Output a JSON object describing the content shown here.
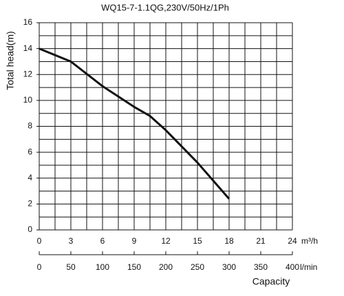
{
  "chart_data": {
    "type": "line",
    "title": "WQ15-7-1.1QG,230V/50Hz/1Ph",
    "y_label": "Total head(m)",
    "x_label": "Capacity",
    "x_unit": "m³/h",
    "x2_unit": "l/min",
    "x": [
      0,
      3,
      6,
      9,
      10.5,
      12,
      15,
      18
    ],
    "series": [
      {
        "color": "#111111",
        "values": [
          14,
          13.0,
          11.1,
          9.5,
          8.8,
          7.7,
          5.2,
          2.4
        ]
      }
    ],
    "xlim": [
      0,
      24
    ],
    "xticks": [
      0,
      3,
      6,
      9,
      12,
      15,
      18,
      21,
      24
    ],
    "xgrid": [
      0,
      1.5,
      3,
      4.5,
      6,
      7.5,
      9,
      10.5,
      12,
      13.5,
      15,
      16.5,
      18,
      19.5,
      21,
      22.5,
      24
    ],
    "ylim": [
      0,
      16
    ],
    "yticks": [
      0,
      2,
      4,
      6,
      8,
      10,
      12,
      14,
      16
    ],
    "ygrid": [
      0,
      1,
      2,
      3,
      4,
      5,
      6,
      7,
      8,
      9,
      10,
      11,
      12,
      13,
      14,
      15,
      16
    ],
    "x2lim": [
      0,
      400
    ],
    "x2ticks": [
      0,
      50,
      100,
      150,
      200,
      250,
      300,
      350,
      400
    ],
    "grid": true
  }
}
